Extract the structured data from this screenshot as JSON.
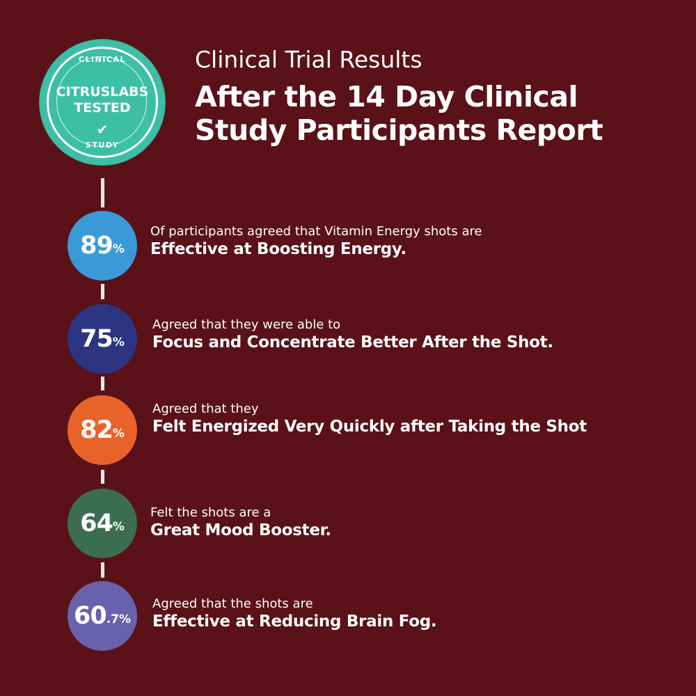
{
  "badge": {
    "top_text": "CLINICAL",
    "main_line1": "CITRUSLABS",
    "main_line2": "TESTED",
    "check_icon": "checkmark-icon",
    "bottom_text": "STUDY",
    "color": "#3dbfa6"
  },
  "header": {
    "subtitle": "Clinical Trial Results",
    "title_line1": "After the 14 Day Clinical",
    "title_line2": "Study Participants Report"
  },
  "results": [
    {
      "value": "89",
      "unit": "%",
      "color": "#3a9ad8",
      "lead": "Of participants agreed that Vitamin Energy shots are",
      "highlight": "Effective at Boosting Energy."
    },
    {
      "value": "75",
      "unit": "%",
      "color": "#2b3582",
      "lead": "Agreed that they were able to",
      "highlight": "Focus and Concentrate Better After the Shot."
    },
    {
      "value": "82",
      "unit": "%",
      "color": "#e8632a",
      "lead": "Agreed that they",
      "highlight": "Felt Energized Very Quickly after Taking the Shot"
    },
    {
      "value": "64",
      "unit": "%",
      "color": "#3b6d52",
      "lead": "Felt the shots are a",
      "highlight": "Great Mood Booster."
    },
    {
      "value": "60",
      "unit": ".7%",
      "color": "#6a61ad",
      "lead": "Agreed that the shots are",
      "highlight": "Effective at Reducing Brain Fog."
    }
  ]
}
